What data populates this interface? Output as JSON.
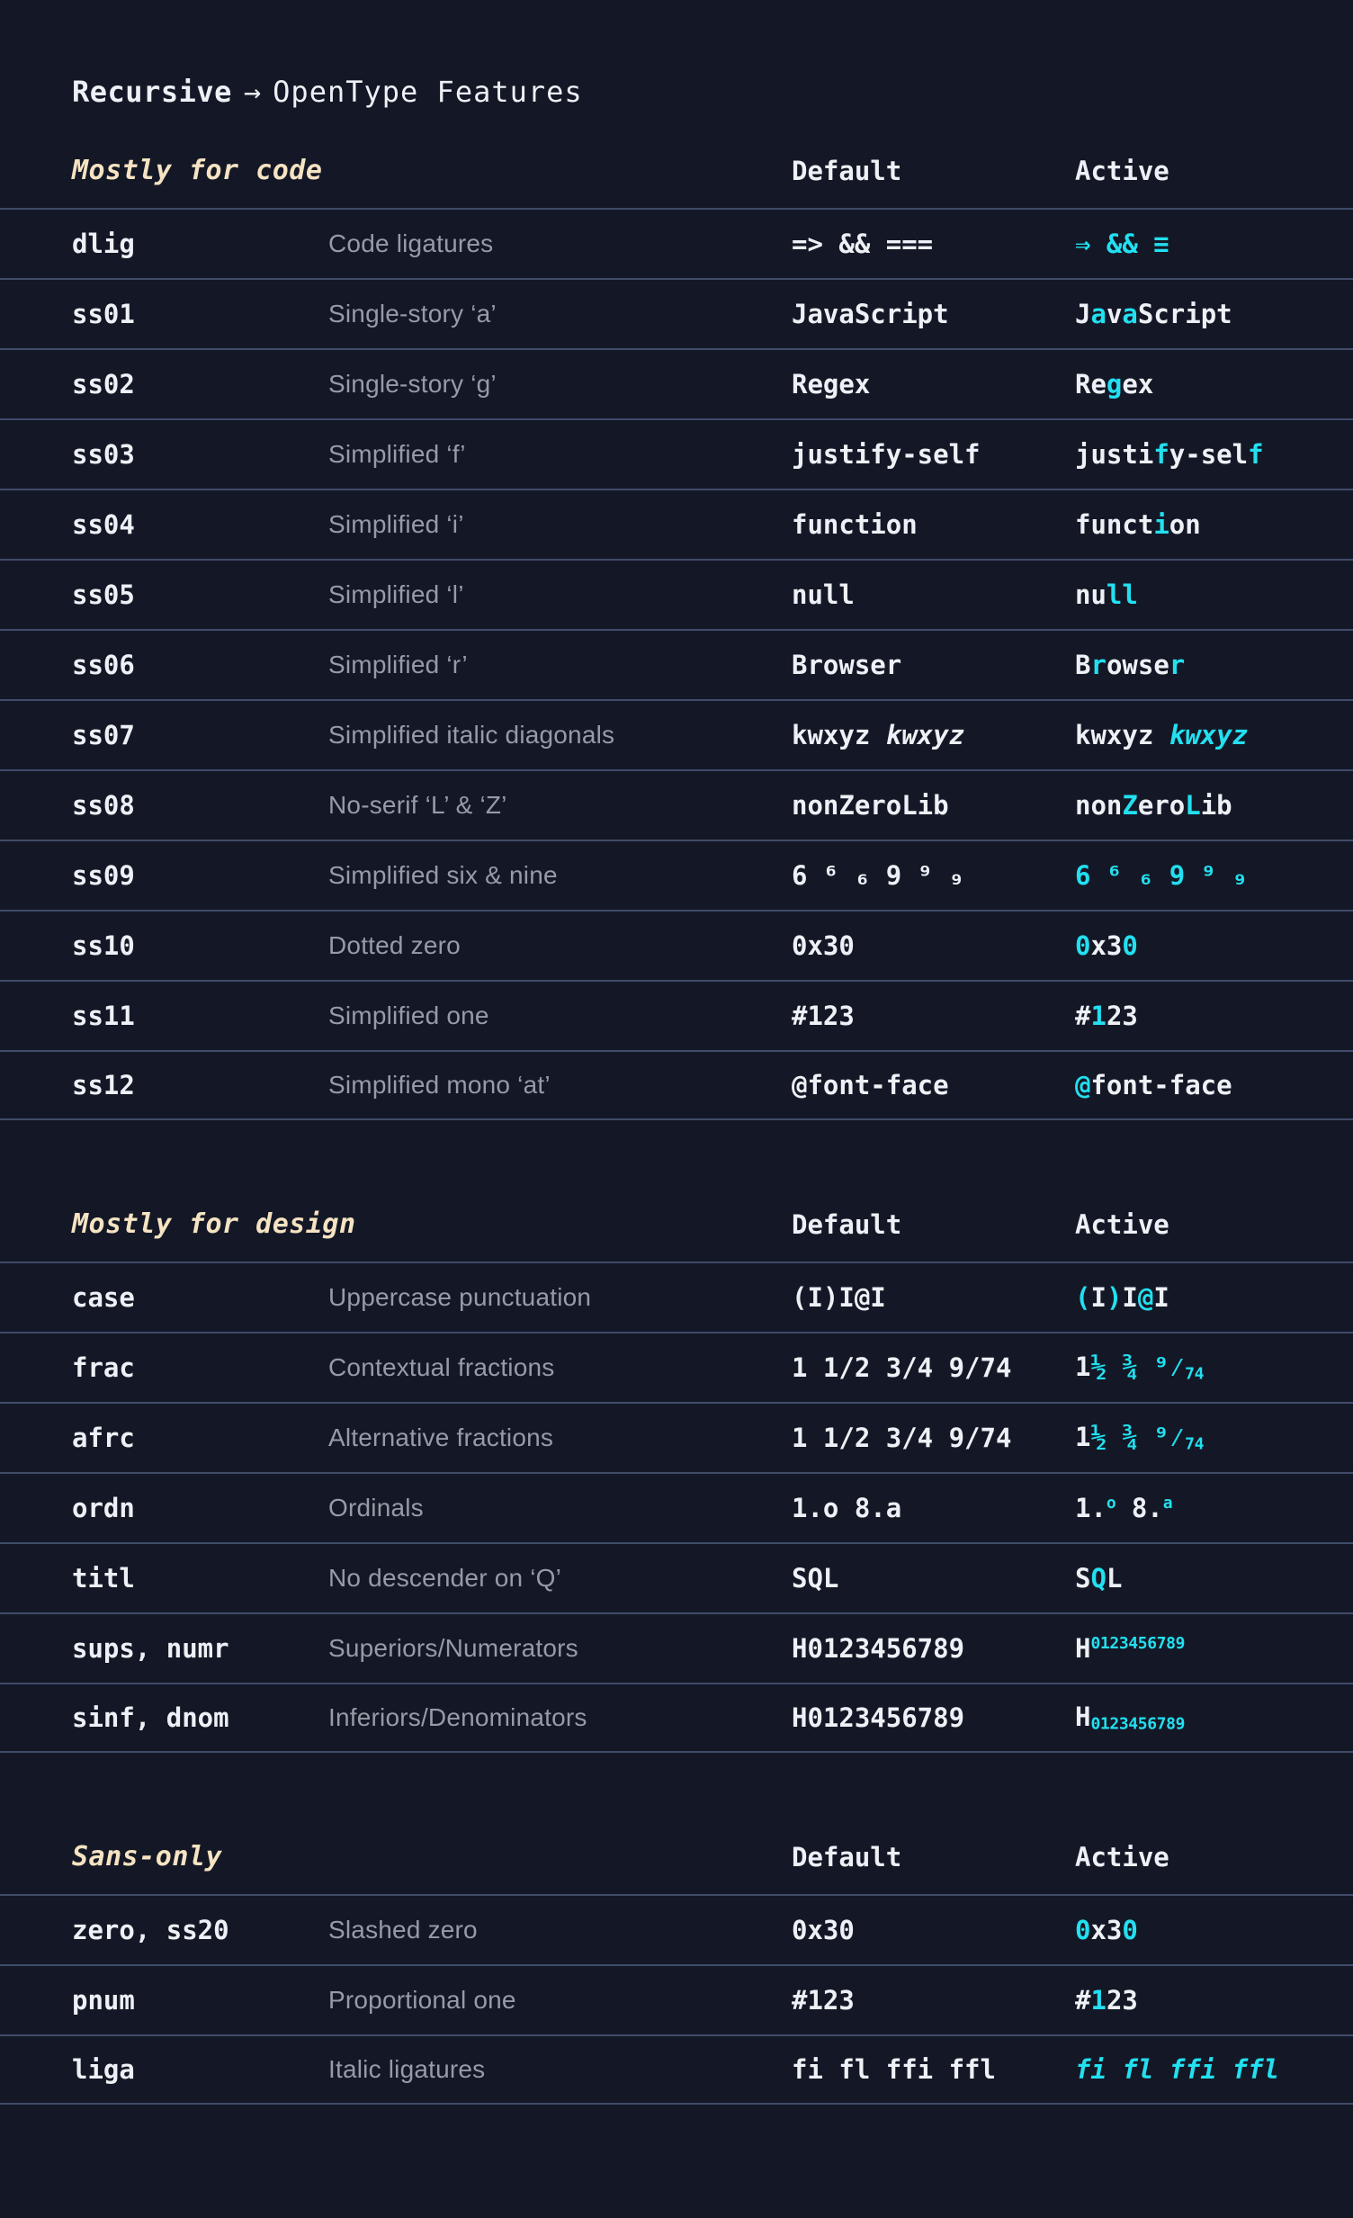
{
  "colors": {
    "background": "#141826",
    "separator": "#3f4b69",
    "text": "#edf0f5",
    "muted": "#969ba7",
    "accent": "#22e0f0",
    "cream": "#f5e3c2"
  },
  "header": {
    "brand": "Recursive",
    "arrow": "→",
    "title": "OpenType Features"
  },
  "columns": {
    "default": "Default",
    "active": "Active"
  },
  "sections": [
    {
      "label": "Mostly for code",
      "rows": [
        {
          "feature": "dlig",
          "description": "Code ligatures",
          "default": [
            {
              "t": "=> && ==="
            }
          ],
          "active": [
            {
              "t": "⇒ && ≡",
              "hl": true
            }
          ]
        },
        {
          "feature": "ss01",
          "description": "Single-story ‘a’",
          "default": [
            {
              "t": "JavaScript"
            }
          ],
          "active": [
            {
              "t": "J"
            },
            {
              "t": "a",
              "hl": true
            },
            {
              "t": "v"
            },
            {
              "t": "a",
              "hl": true
            },
            {
              "t": "Script"
            }
          ]
        },
        {
          "feature": "ss02",
          "description": "Single-story ‘g’",
          "default": [
            {
              "t": "Regex"
            }
          ],
          "active": [
            {
              "t": "Re"
            },
            {
              "t": "g",
              "hl": true
            },
            {
              "t": "ex"
            }
          ]
        },
        {
          "feature": "ss03",
          "description": "Simplified ‘f’",
          "default": [
            {
              "t": "justify-self"
            }
          ],
          "active": [
            {
              "t": "justi"
            },
            {
              "t": "f",
              "hl": true
            },
            {
              "t": "y-sel"
            },
            {
              "t": "f",
              "hl": true
            }
          ]
        },
        {
          "feature": "ss04",
          "description": "Simplified ‘i’",
          "default": [
            {
              "t": "function"
            }
          ],
          "active": [
            {
              "t": "funct"
            },
            {
              "t": "i",
              "hl": true
            },
            {
              "t": "on"
            }
          ]
        },
        {
          "feature": "ss05",
          "description": "Simplified ‘l’",
          "default": [
            {
              "t": "null"
            }
          ],
          "active": [
            {
              "t": "nu"
            },
            {
              "t": "ll",
              "hl": true
            }
          ]
        },
        {
          "feature": "ss06",
          "description": "Simplified ‘r’",
          "default": [
            {
              "t": "Browser"
            }
          ],
          "active": [
            {
              "t": "B"
            },
            {
              "t": "r",
              "hl": true
            },
            {
              "t": "owse"
            },
            {
              "t": "r",
              "hl": true
            }
          ]
        },
        {
          "feature": "ss07",
          "description": "Simplified italic diagonals",
          "default": [
            {
              "t": "kwxyz "
            },
            {
              "t": "kwxyz",
              "i": true
            }
          ],
          "active": [
            {
              "t": "kwxyz "
            },
            {
              "t": "kwxyz",
              "hl": true,
              "i": true
            }
          ]
        },
        {
          "feature": "ss08",
          "description": "No-serif ‘L’ & ‘Z’",
          "default": [
            {
              "t": "nonZeroLib"
            }
          ],
          "active": [
            {
              "t": "non"
            },
            {
              "t": "Z",
              "hl": true
            },
            {
              "t": "ero"
            },
            {
              "t": "L",
              "hl": true
            },
            {
              "t": "ib"
            }
          ]
        },
        {
          "feature": "ss09",
          "description": "Simplified six & nine",
          "default": [
            {
              "t": "6 ⁶ ₆ 9 ⁹ ₉"
            }
          ],
          "active": [
            {
              "t": "6 ⁶ ₆ 9 ⁹ ₉",
              "hl": true
            }
          ]
        },
        {
          "feature": "ss10",
          "description": "Dotted zero",
          "default": [
            {
              "t": "0x30"
            }
          ],
          "active": [
            {
              "t": "0",
              "hl": true
            },
            {
              "t": "x3"
            },
            {
              "t": "0",
              "hl": true
            }
          ]
        },
        {
          "feature": "ss11",
          "description": "Simplified one",
          "default": [
            {
              "t": "#123"
            }
          ],
          "active": [
            {
              "t": "#"
            },
            {
              "t": "1",
              "hl": true
            },
            {
              "t": "23"
            }
          ]
        },
        {
          "feature": "ss12",
          "description": "Simplified mono ‘at’",
          "default": [
            {
              "t": "@font-face"
            }
          ],
          "active": [
            {
              "t": "@",
              "hl": true
            },
            {
              "t": "font-face"
            }
          ]
        }
      ]
    },
    {
      "label": "Mostly for design",
      "rows": [
        {
          "feature": "case",
          "description": "Uppercase punctuation",
          "default": [
            {
              "t": "(I)I@I"
            }
          ],
          "active": [
            {
              "t": "(",
              "hl": true
            },
            {
              "t": "I"
            },
            {
              "t": ")",
              "hl": true
            },
            {
              "t": "I"
            },
            {
              "t": "@",
              "hl": true
            },
            {
              "t": "I"
            }
          ]
        },
        {
          "feature": "frac",
          "description": "Contextual fractions",
          "default": [
            {
              "t": "1 1/2 3/4 9/74"
            }
          ],
          "active": [
            {
              "t": "1"
            },
            {
              "t": "½ ¾ ⁹⁄",
              "hl": true
            },
            {
              "t": "74",
              "hl": true,
              "sub": true
            }
          ]
        },
        {
          "feature": "afrc",
          "description": "Alternative fractions",
          "default": [
            {
              "t": "1 1/2 3/4 9/74"
            }
          ],
          "active": [
            {
              "t": "1"
            },
            {
              "t": "½ ¾ ⁹⁄",
              "hl": true
            },
            {
              "t": "74",
              "hl": true,
              "sub": true
            }
          ]
        },
        {
          "feature": "ordn",
          "description": "Ordinals",
          "default": [
            {
              "t": "1.o 8.a"
            }
          ],
          "active": [
            {
              "t": "1."
            },
            {
              "t": "o",
              "hl": true,
              "sup": true
            },
            {
              "t": " 8."
            },
            {
              "t": "a",
              "hl": true,
              "sup": true
            }
          ]
        },
        {
          "feature": "titl",
          "description": "No descender on ‘Q’",
          "default": [
            {
              "t": "SQL"
            }
          ],
          "active": [
            {
              "t": "S"
            },
            {
              "t": "Q",
              "hl": true
            },
            {
              "t": "L"
            }
          ]
        },
        {
          "feature": "sups, numr",
          "description": "Superiors/Numerators",
          "default": [
            {
              "t": "H0123456789"
            }
          ],
          "active": [
            {
              "t": "H"
            },
            {
              "t": "0123456789",
              "hl": true,
              "sup": true
            }
          ]
        },
        {
          "feature": "sinf, dnom",
          "description": "Inferiors/Denominators",
          "default": [
            {
              "t": "H0123456789"
            }
          ],
          "active": [
            {
              "t": "H"
            },
            {
              "t": "0123456789",
              "hl": true,
              "sub": true
            }
          ]
        }
      ]
    },
    {
      "label": "Sans-only",
      "rows": [
        {
          "feature": "zero, ss20",
          "description": "Slashed zero",
          "default": [
            {
              "t": "0x30"
            }
          ],
          "active": [
            {
              "t": "0",
              "hl": true
            },
            {
              "t": "x3"
            },
            {
              "t": "0",
              "hl": true
            }
          ]
        },
        {
          "feature": "pnum",
          "description": "Proportional one",
          "default": [
            {
              "t": "#123"
            }
          ],
          "active": [
            {
              "t": "#"
            },
            {
              "t": "1",
              "hl": true
            },
            {
              "t": "23"
            }
          ]
        },
        {
          "feature": "liga",
          "description": "Italic ligatures",
          "default": [
            {
              "t": "fi fl ffi ffl"
            }
          ],
          "active": [
            {
              "t": "fi fl ffi ffl",
              "hl": true,
              "i": true
            }
          ]
        }
      ]
    }
  ]
}
